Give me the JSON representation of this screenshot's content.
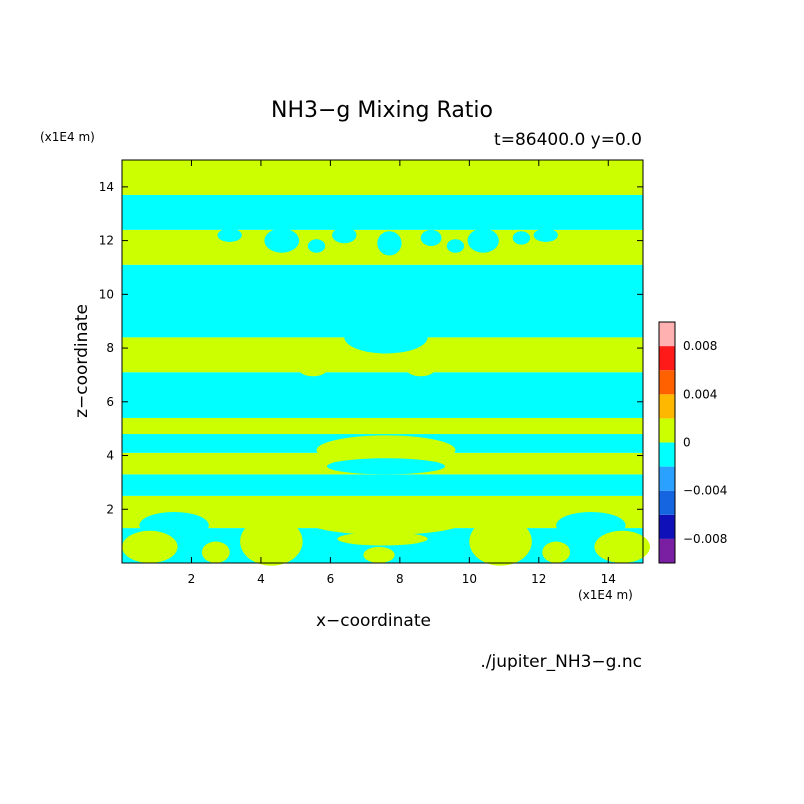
{
  "chart_data": {
    "type": "heatmap",
    "title": "NH3−g Mixing Ratio",
    "subtitle": "t=86400.0 y=0.0",
    "xlabel": "x−coordinate",
    "ylabel": "z−coordinate",
    "x_unit": "(x1E4 m)",
    "z_unit": "(x1E4 m)",
    "xlim": [
      0,
      15
    ],
    "ylim": [
      0,
      15
    ],
    "x_ticks": [
      2,
      4,
      6,
      8,
      10,
      12,
      14
    ],
    "y_ticks": [
      2,
      4,
      6,
      8,
      10,
      12,
      14
    ],
    "colorbar": {
      "placement": "right",
      "levels": [
        -0.01,
        -0.008,
        -0.006,
        -0.004,
        -0.002,
        0,
        0.002,
        0.004,
        0.006,
        0.008,
        0.01
      ],
      "colors": [
        "#7a1fa2",
        "#1010b8",
        "#1565e0",
        "#2aa0ff",
        "#00ffff",
        "#ccff00",
        "#ffb800",
        "#ff6000",
        "#ff1a1a",
        "#ffb0b0"
      ],
      "tick_values": [
        -0.008,
        -0.004,
        0,
        0.004,
        0.008
      ],
      "tick_labels": [
        "−0.008",
        "−0.004",
        "0",
        "0.004",
        "0.008"
      ]
    },
    "field_colors": {
      "positive": "#ccff00",
      "negative": "#00ffff"
    },
    "bands": [
      {
        "z0": 0.0,
        "z1": 1.3,
        "sign": "negative"
      },
      {
        "z0": 1.3,
        "z1": 2.5,
        "sign": "positive"
      },
      {
        "z0": 2.5,
        "z1": 3.3,
        "sign": "negative"
      },
      {
        "z0": 3.3,
        "z1": 4.1,
        "sign": "positive"
      },
      {
        "z0": 4.1,
        "z1": 4.8,
        "sign": "negative"
      },
      {
        "z0": 4.8,
        "z1": 5.4,
        "sign": "positive"
      },
      {
        "z0": 5.4,
        "z1": 7.1,
        "sign": "negative"
      },
      {
        "z0": 7.1,
        "z1": 8.4,
        "sign": "positive"
      },
      {
        "z0": 8.4,
        "z1": 11.1,
        "sign": "negative"
      },
      {
        "z0": 11.1,
        "z1": 12.4,
        "sign": "positive"
      },
      {
        "z0": 12.4,
        "z1": 13.7,
        "sign": "negative"
      },
      {
        "z0": 13.7,
        "z1": 15.0,
        "sign": "positive"
      }
    ],
    "blobs": [
      {
        "x": 3.1,
        "z": 12.2,
        "rx": 0.35,
        "rz": 0.25,
        "sign": "negative"
      },
      {
        "x": 4.6,
        "z": 12.0,
        "rx": 0.5,
        "rz": 0.45,
        "sign": "negative"
      },
      {
        "x": 5.6,
        "z": 11.8,
        "rx": 0.25,
        "rz": 0.25,
        "sign": "negative"
      },
      {
        "x": 6.4,
        "z": 12.2,
        "rx": 0.35,
        "rz": 0.3,
        "sign": "negative"
      },
      {
        "x": 7.7,
        "z": 11.9,
        "rx": 0.35,
        "rz": 0.45,
        "sign": "negative"
      },
      {
        "x": 8.9,
        "z": 12.1,
        "rx": 0.3,
        "rz": 0.3,
        "sign": "negative"
      },
      {
        "x": 9.6,
        "z": 11.8,
        "rx": 0.25,
        "rz": 0.25,
        "sign": "negative"
      },
      {
        "x": 10.4,
        "z": 12.0,
        "rx": 0.45,
        "rz": 0.45,
        "sign": "negative"
      },
      {
        "x": 11.5,
        "z": 12.1,
        "rx": 0.25,
        "rz": 0.25,
        "sign": "negative"
      },
      {
        "x": 12.2,
        "z": 12.2,
        "rx": 0.35,
        "rz": 0.25,
        "sign": "negative"
      },
      {
        "x": 7.6,
        "z": 8.4,
        "rx": 1.2,
        "rz": 0.6,
        "sign": "negative"
      },
      {
        "x": 7.6,
        "z": 4.2,
        "rx": 2.0,
        "rz": 0.55,
        "sign": "positive"
      },
      {
        "x": 7.6,
        "z": 3.6,
        "rx": 1.7,
        "rz": 0.3,
        "sign": "negative"
      },
      {
        "x": 5.5,
        "z": 7.2,
        "rx": 0.4,
        "rz": 0.25,
        "sign": "positive"
      },
      {
        "x": 8.6,
        "z": 7.2,
        "rx": 0.4,
        "rz": 0.25,
        "sign": "positive"
      },
      {
        "x": 1.5,
        "z": 1.4,
        "rx": 1.0,
        "rz": 0.5,
        "sign": "negative"
      },
      {
        "x": 13.5,
        "z": 1.4,
        "rx": 1.0,
        "rz": 0.5,
        "sign": "negative"
      },
      {
        "x": 4.3,
        "z": 0.8,
        "rx": 0.9,
        "rz": 0.9,
        "sign": "positive"
      },
      {
        "x": 10.9,
        "z": 0.8,
        "rx": 0.9,
        "rz": 0.9,
        "sign": "positive"
      },
      {
        "x": 7.6,
        "z": 1.5,
        "rx": 2.2,
        "rz": 0.45,
        "sign": "positive"
      },
      {
        "x": 7.5,
        "z": 0.9,
        "rx": 1.3,
        "rz": 0.25,
        "sign": "positive"
      },
      {
        "x": 7.4,
        "z": 0.3,
        "rx": 0.45,
        "rz": 0.3,
        "sign": "positive"
      },
      {
        "x": 0.8,
        "z": 0.6,
        "rx": 0.8,
        "rz": 0.6,
        "sign": "positive"
      },
      {
        "x": 14.4,
        "z": 0.6,
        "rx": 0.8,
        "rz": 0.6,
        "sign": "positive"
      },
      {
        "x": 2.7,
        "z": 0.4,
        "rx": 0.4,
        "rz": 0.4,
        "sign": "positive"
      },
      {
        "x": 12.5,
        "z": 0.4,
        "rx": 0.4,
        "rz": 0.4,
        "sign": "positive"
      }
    ],
    "source_file": "./jupiter_NH3−g.nc"
  }
}
